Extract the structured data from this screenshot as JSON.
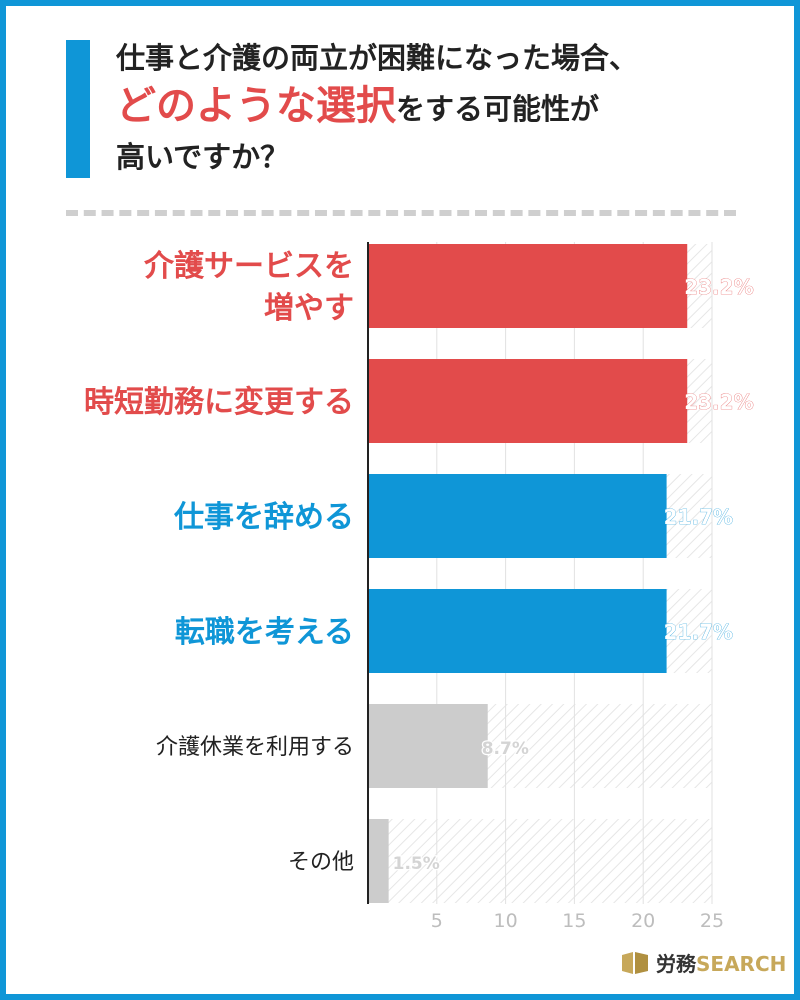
{
  "title": {
    "line1": "仕事と介護の両立が困難になった場合、",
    "line2_highlight": "どのような選択",
    "line2_rest": "をする可能性が",
    "line3": "高いですか？"
  },
  "chart_data": {
    "type": "bar",
    "orientation": "horizontal",
    "categories": [
      [
        "介護サービスを",
        "増やす"
      ],
      [
        "時短勤務に変更する"
      ],
      [
        "仕事を辞める"
      ],
      [
        "転職を考える"
      ],
      [
        "介護休業を利用する"
      ],
      [
        "その他"
      ]
    ],
    "values": [
      23.2,
      23.2,
      21.7,
      21.7,
      8.7,
      1.5
    ],
    "value_labels": [
      "23.2%",
      "23.2%",
      "21.7%",
      "21.7%",
      "8.7%",
      "1.5%"
    ],
    "bar_colors": [
      "#e24b4b",
      "#e24b4b",
      "#0f96d7",
      "#0f96d7",
      "#cccccc",
      "#cccccc"
    ],
    "category_colors": [
      "#e24b4b",
      "#e24b4b",
      "#0f96d7",
      "#0f96d7",
      "#222222",
      "#222222"
    ],
    "emphasis": [
      true,
      true,
      true,
      true,
      false,
      false
    ],
    "xlim": [
      0,
      25
    ],
    "xticks": [
      "5",
      "10",
      "15",
      "20",
      "25"
    ],
    "grid": true
  },
  "logo": {
    "text_prefix": "労務",
    "text_accent": "SEARCH"
  },
  "colors": {
    "accent_blue": "#0f96d7",
    "accent_red": "#e24b4b",
    "muted_gray": "#cccccc"
  }
}
